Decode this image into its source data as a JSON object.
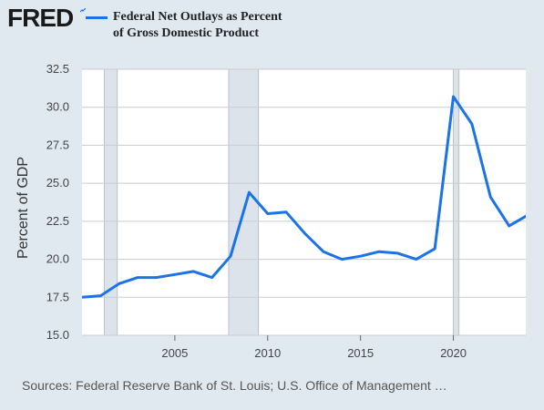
{
  "brand": {
    "logo_text": "FRED"
  },
  "colors": {
    "line": "#1a73e8",
    "recession": "#dde3ea",
    "background": "#e1e9f0",
    "plot_bg": "#ffffff",
    "grid": "#cccccc"
  },
  "source_text": "Sources: Federal Reserve Bank of St. Louis; U.S. Office of Management …",
  "chart_data": {
    "type": "line",
    "title": "",
    "xlabel": "",
    "ylabel": "Percent of GDP",
    "xlim": [
      2000.0,
      2023.9
    ],
    "ylim": [
      15.0,
      32.5
    ],
    "yticks": [
      "15.0",
      "17.5",
      "20.0",
      "22.5",
      "25.0",
      "27.5",
      "30.0",
      "32.5"
    ],
    "xticks": [
      "2005",
      "2010",
      "2015",
      "2020"
    ],
    "grid": true,
    "legend_position": "top-left",
    "recessions": [
      [
        2001.2,
        2001.9
      ],
      [
        2007.9,
        2009.5
      ],
      [
        2020.0,
        2020.3
      ]
    ],
    "series": [
      {
        "name": "Federal Net Outlays as Percent of Gross Domestic Product",
        "x": [
          2000,
          2001,
          2002,
          2003,
          2004,
          2005,
          2006,
          2007,
          2008,
          2009,
          2010,
          2011,
          2012,
          2013,
          2014,
          2015,
          2016,
          2017,
          2018,
          2019,
          2020,
          2021,
          2022,
          2023,
          2024
        ],
        "values": [
          17.5,
          17.6,
          18.4,
          18.8,
          18.8,
          19.0,
          19.2,
          18.8,
          20.2,
          24.4,
          23.0,
          23.1,
          21.7,
          20.5,
          20.0,
          20.2,
          20.5,
          20.4,
          20.0,
          20.7,
          30.7,
          28.9,
          24.1,
          22.2,
          22.9
        ]
      }
    ]
  }
}
